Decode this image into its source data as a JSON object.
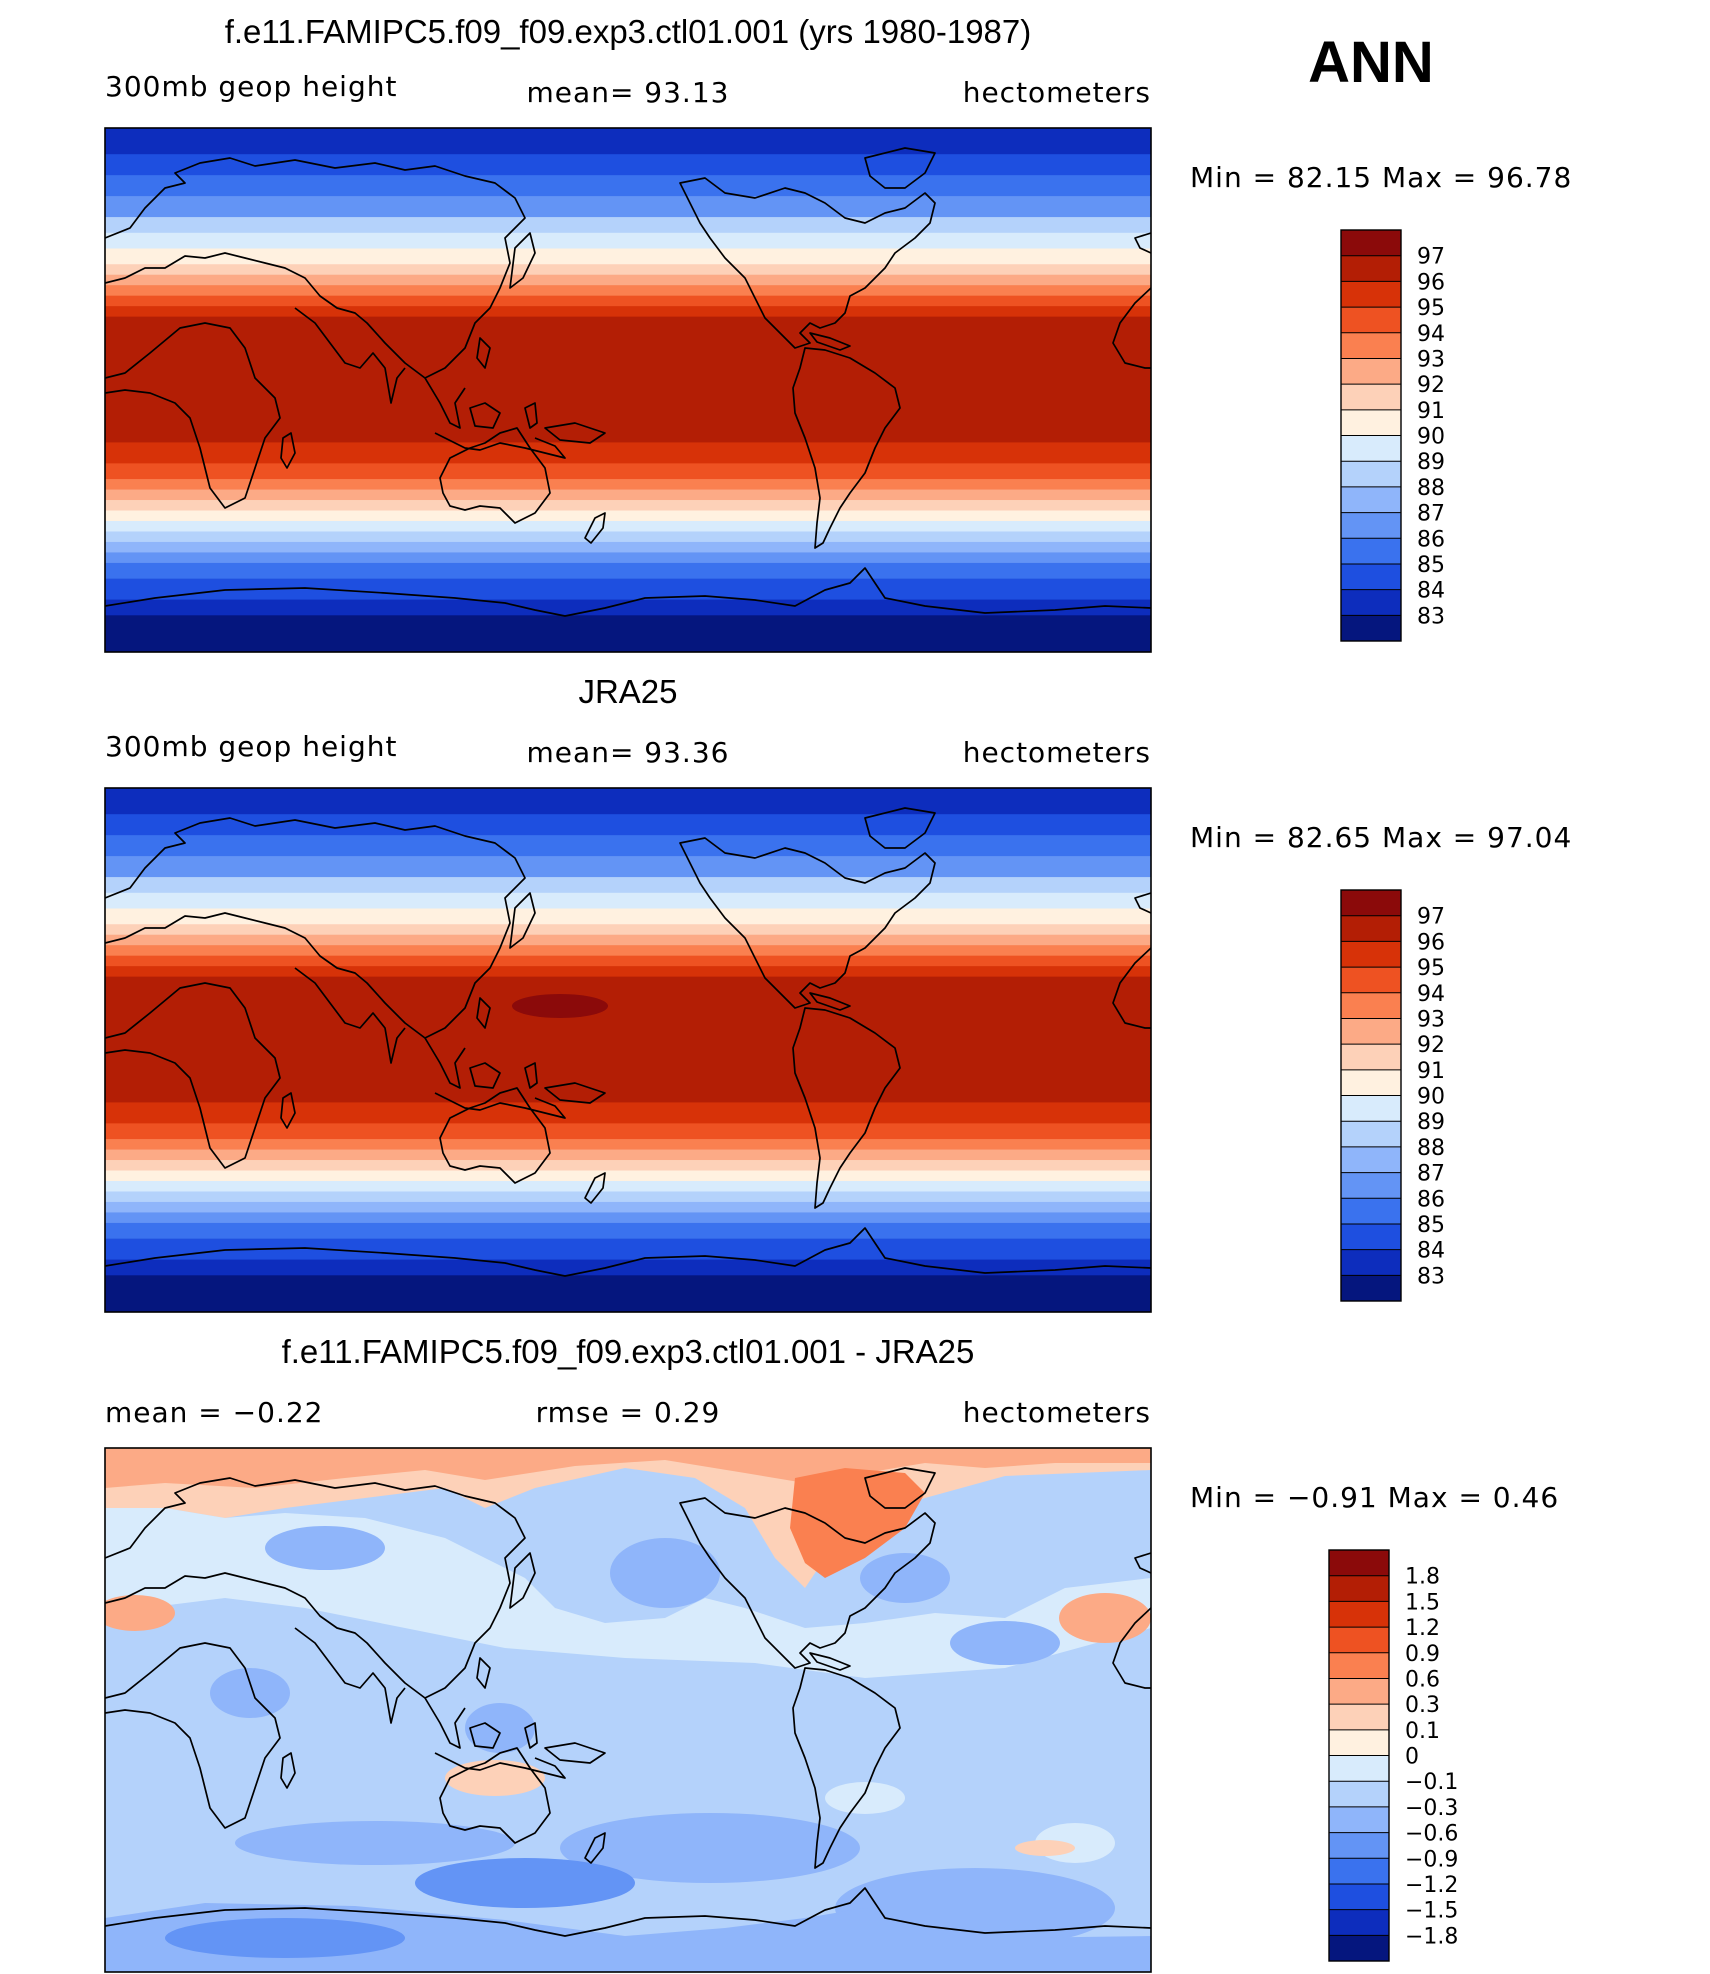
{
  "season_label": "ANN",
  "panels": [
    {
      "title": "f.e11.FAMIPC5.f09_f09.exp3.ctl01.001 (yrs 1980-1987)",
      "left_text": "300mb  geop  height",
      "center_text": "mean=   93.13",
      "right_text": "hectometers",
      "minmax_text": "Min  =   82.15  Max  =   96.78",
      "colorbar_labels": [
        "97",
        "96",
        "95",
        "94",
        "93",
        "92",
        "91",
        "90",
        "89",
        "88",
        "87",
        "86",
        "85",
        "84",
        "83"
      ],
      "colors": [
        "#8b0a0a",
        "#b31e05",
        "#d73208",
        "#ee5222",
        "#fa8050",
        "#fcaa86",
        "#fdd1b8",
        "#fff1e0",
        "#d8ebfc",
        "#b4d2fb",
        "#8fb5fa",
        "#6394f5",
        "#3a72ee",
        "#1e4fe0",
        "#0d2dbd",
        "#05167e"
      ]
    },
    {
      "title": "JRA25",
      "left_text": "300mb  geop  height",
      "center_text": "mean=   93.36",
      "right_text": "hectometers",
      "minmax_text": "Min  =   82.65  Max  =   97.04",
      "colorbar_labels": [
        "97",
        "96",
        "95",
        "94",
        "93",
        "92",
        "91",
        "90",
        "89",
        "88",
        "87",
        "86",
        "85",
        "84",
        "83"
      ],
      "colors": [
        "#8b0a0a",
        "#b31e05",
        "#d73208",
        "#ee5222",
        "#fa8050",
        "#fcaa86",
        "#fdd1b8",
        "#fff1e0",
        "#d8ebfc",
        "#b4d2fb",
        "#8fb5fa",
        "#6394f5",
        "#3a72ee",
        "#1e4fe0",
        "#0d2dbd",
        "#05167e"
      ]
    },
    {
      "title": "f.e11.FAMIPC5.f09_f09.exp3.ctl01.001 - JRA25",
      "left_text": "mean  =    −0.22",
      "center_text": "rmse  =     0.29",
      "right_text": "hectometers",
      "minmax_text": "Min  =   −0.91  Max  =     0.46",
      "colorbar_labels": [
        "1.8",
        "1.5",
        "1.2",
        "0.9",
        "0.6",
        "0.3",
        "0.1",
        "0",
        "−0.1",
        "−0.3",
        "−0.6",
        "−0.9",
        "−1.2",
        "−1.5",
        "−1.8"
      ],
      "colors": [
        "#8b0a0a",
        "#b31e05",
        "#d73208",
        "#ee5222",
        "#fa8050",
        "#fcaa86",
        "#fdd1b8",
        "#fff1e0",
        "#d8ebfc",
        "#b4d2fb",
        "#8fb5fa",
        "#6394f5",
        "#3a72ee",
        "#1e4fe0",
        "#0d2dbd",
        "#05167e"
      ]
    }
  ]
}
